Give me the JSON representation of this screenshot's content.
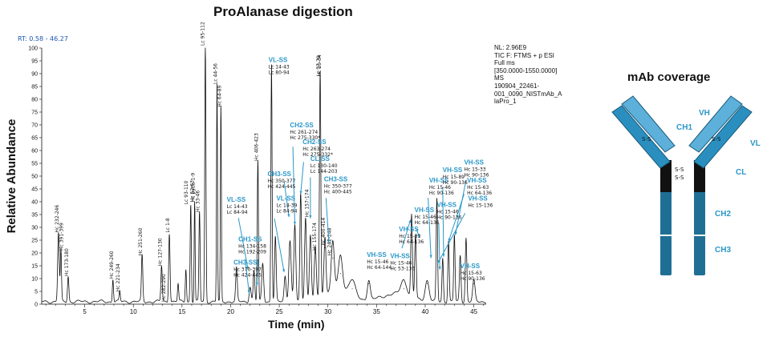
{
  "title": "ProAlanase digestion",
  "rt_range": "RT: 0.58 - 46.27",
  "instrument_info": [
    "NL: 2.96E9",
    "TIC F: FTMS + p ESI",
    "Full ms",
    "[350.0000-1550.0000]",
    "MS",
    "190904_22461-",
    "001_0090_NISTmAb_A",
    "laPro_1"
  ],
  "colors": {
    "trace": "#111111",
    "annotation": "#2a97c8",
    "heavy": "#1f6f95",
    "heavy_light": "#2a8fbf",
    "light": "#5cb0da",
    "hinge": "#111111"
  },
  "antibody": {
    "title": "mAb coverage",
    "labels": {
      "vh": "VH",
      "ch1": "CH1",
      "vl": "VL",
      "cl": "CL",
      "ch2": "CH2",
      "ch3": "CH3"
    },
    "disulfide": "S-S"
  },
  "chart_data": {
    "type": "line",
    "xlabel": "Time (min)",
    "ylabel": "Relative Abundance",
    "xlim": [
      0.58,
      46.27
    ],
    "ylim": [
      0,
      100
    ],
    "xticks": [
      5,
      10,
      15,
      20,
      25,
      30,
      35,
      40,
      45
    ],
    "yticks": [
      0,
      5,
      10,
      15,
      20,
      25,
      30,
      35,
      40,
      45,
      50,
      55,
      60,
      65,
      70,
      75,
      80,
      85,
      90,
      95,
      100
    ],
    "baseline": 1.0,
    "peaks": [
      [
        2.3,
        27,
        0.08
      ],
      [
        2.55,
        20,
        0.06
      ],
      [
        3.3,
        10,
        0.07
      ],
      [
        7.9,
        9,
        0.06
      ],
      [
        8.6,
        4,
        0.06
      ],
      [
        10.9,
        18,
        0.07
      ],
      [
        12.9,
        14,
        0.07
      ],
      [
        13.7,
        27,
        0.07
      ],
      [
        14.6,
        7,
        0.06
      ],
      [
        15.4,
        13,
        0.06
      ],
      [
        15.9,
        38,
        0.06
      ],
      [
        16.3,
        39,
        0.05
      ],
      [
        16.8,
        35,
        0.06
      ],
      [
        17.4,
        100,
        0.06
      ],
      [
        18.6,
        85,
        0.05
      ],
      [
        19.0,
        76,
        0.05
      ],
      [
        20.6,
        13,
        0.08
      ],
      [
        22.0,
        6,
        0.1
      ],
      [
        22.4,
        12,
        0.08
      ],
      [
        22.8,
        55,
        0.06
      ],
      [
        23.3,
        15,
        0.1
      ],
      [
        24.2,
        93,
        0.06
      ],
      [
        24.6,
        25,
        0.08
      ],
      [
        25.6,
        10,
        0.1
      ],
      [
        26.1,
        24,
        0.12
      ],
      [
        26.6,
        30,
        0.1
      ],
      [
        27.2,
        42,
        0.08
      ],
      [
        27.7,
        33,
        0.1
      ],
      [
        28.2,
        26,
        0.1
      ],
      [
        28.7,
        20,
        0.1
      ],
      [
        29.2,
        88,
        0.07
      ],
      [
        29.7,
        22,
        0.1
      ],
      [
        30.5,
        18,
        0.15
      ],
      [
        31.3,
        12,
        0.2
      ],
      [
        32.5,
        6,
        0.3
      ],
      [
        34.2,
        8,
        0.15
      ],
      [
        37.8,
        6,
        0.3
      ],
      [
        38.6,
        32,
        0.08
      ],
      [
        39.0,
        25,
        0.08
      ],
      [
        40.2,
        8,
        0.2
      ],
      [
        41.2,
        40,
        0.07
      ],
      [
        41.8,
        17,
        0.07
      ],
      [
        42.4,
        24,
        0.07
      ],
      [
        43.0,
        26,
        0.07
      ],
      [
        43.6,
        18,
        0.08
      ],
      [
        44.2,
        25,
        0.08
      ],
      [
        45.0,
        8,
        0.12
      ],
      [
        31.0,
        6,
        1.2
      ],
      [
        37.0,
        3,
        1.5
      ]
    ],
    "black_labels": [
      {
        "x": 2.3,
        "lines": [
          "Hc 232-246"
        ]
      },
      {
        "x": 2.75,
        "lines": [
          "Hc 391-399"
        ]
      },
      {
        "x": 3.3,
        "lines": [
          "Hc 173-180"
        ]
      },
      {
        "x": 7.9,
        "lines": [
          "Hc 249-260"
        ]
      },
      {
        "x": 8.6,
        "lines": [
          "Hc 221-234"
        ]
      },
      {
        "x": 10.9,
        "lines": [
          "Hc 251-260"
        ]
      },
      {
        "x": 12.9,
        "lines": [
          "Hc 127-130"
        ]
      },
      {
        "x": 13.3,
        "lines": [
          "Hc 282-290"
        ]
      },
      {
        "x": 13.7,
        "lines": [
          "Lc 1-8"
        ]
      },
      {
        "x": 15.6,
        "lines": [
          "Lc 93-110"
        ]
      },
      {
        "x": 16.2,
        "lines": [
          "Hc 52-63"
        ]
      },
      {
        "x": 16.3,
        "lines": [
          "Hc pyEu 1-9"
        ]
      },
      {
        "x": 16.8,
        "lines": [
          "Hc 33-46"
        ]
      },
      {
        "x": 17.3,
        "lines": [
          "Lc 95-112"
        ]
      },
      {
        "x": 18.6,
        "lines": [
          "Lc 44-56"
        ]
      },
      {
        "x": 19.0,
        "lines": [
          "Hc 64-89"
        ]
      },
      {
        "x": 22.8,
        "lines": [
          "Hc 406-423"
        ]
      },
      {
        "x": 28.0,
        "lines": [
          "Hc 157-174"
        ]
      },
      {
        "x": 28.8,
        "lines": [
          "Hc 155-174"
        ]
      },
      {
        "x": 29.2,
        "lines": [
          "Lc 57-79"
        ]
      },
      {
        "x": 29.3,
        "lines": [
          "Hc 25-34"
        ]
      },
      {
        "x": 29.7,
        "lines": [
          "Hc 400-414"
        ]
      },
      {
        "x": 30.3,
        "lines": [
          "Hc 242-248"
        ]
      }
    ],
    "ss_labels": [
      {
        "x": 23.9,
        "y": 94.5,
        "title": "VL-SS",
        "lines": [
          "Lc 14-43",
          "Lc 80-94"
        ]
      },
      {
        "x": 19.6,
        "y": 40,
        "title": "VL-SS",
        "lines": [
          "Lc 14-43",
          "Lc 84-94"
        ]
      },
      {
        "x": 20.8,
        "y": 24.5,
        "title": "CH1-SS",
        "lines": [
          "Hc 134-158",
          "Hc 192-209"
        ]
      },
      {
        "x": 20.3,
        "y": 15.5,
        "title": "CH3-SS",
        "lines": [
          "Hc 370-397",
          "Hc 424-445"
        ]
      },
      {
        "x": 24.7,
        "y": 40.5,
        "title": "VL-SS",
        "lines": [
          "Lc 14-39",
          "Lc 84-94"
        ]
      },
      {
        "x": 23.8,
        "y": 50,
        "title": "CH3-SS",
        "lines": [
          "Hc 350-377",
          "Hc 424-445"
        ]
      },
      {
        "x": 26.1,
        "y": 69,
        "title": "CH2-SS",
        "lines": [
          "Hc 261-274",
          "Hc 275-330*"
        ]
      },
      {
        "x": 27.4,
        "y": 62.5,
        "title": "CH2-SS",
        "lines": [
          "Hc 263-274",
          "Hc 275-332*"
        ]
      },
      {
        "x": 28.2,
        "y": 56,
        "title": "CL-SS",
        "lines": [
          "Lc 130-140",
          "Lc 144-203"
        ]
      },
      {
        "x": 29.6,
        "y": 48,
        "title": "CH3-SS",
        "lines": [
          "Hc 350-377",
          "Hc 400-445"
        ]
      },
      {
        "x": 34.0,
        "y": 18.5,
        "title": "VH-SS",
        "lines": [
          "Hc 15-46",
          "Hc 64-144"
        ]
      },
      {
        "x": 36.4,
        "y": 18,
        "title": "VH-SS",
        "lines": [
          "Hc 15-46",
          "Hc 53-136"
        ]
      },
      {
        "x": 37.3,
        "y": 28.5,
        "title": "VH-SS",
        "lines": [
          "Hc 15-33",
          "Hc 64-136"
        ]
      },
      {
        "x": 38.9,
        "y": 36,
        "title": "VH-SS",
        "lines": [
          "Hc 15-46",
          "Hc 64-136"
        ]
      },
      {
        "x": 40.4,
        "y": 47.5,
        "title": "VH-SS",
        "lines": [
          "Hc 15-46",
          "Hc 90-136"
        ]
      },
      {
        "x": 41.8,
        "y": 51.5,
        "title": "VH-SS",
        "lines": [
          "Hc 15-89",
          "Hc 90-136"
        ]
      },
      {
        "x": 41.2,
        "y": 38,
        "title": "VH-SS",
        "lines": [
          "Hc 15-46",
          "Hc 90-136"
        ]
      },
      {
        "x": 44.0,
        "y": 54.5,
        "title": "VH-SS",
        "lines": [
          "Hc 15-33",
          "Hc 90-136"
        ]
      },
      {
        "x": 44.3,
        "y": 47.5,
        "title": "VH-SS",
        "lines": [
          "Hc 15-63",
          "Hc 64-136"
        ]
      },
      {
        "x": 44.4,
        "y": 40.5,
        "title": "VH-SS",
        "lines": [
          "Hc 15-136"
        ]
      },
      {
        "x": 43.6,
        "y": 14,
        "title": "VH-SS",
        "lines": [
          "Hc 15-63",
          "Hc 90-136"
        ]
      }
    ],
    "arrows": [
      [
        20.8,
        33.7,
        21.8,
        13.5
      ],
      [
        21.5,
        17.5,
        21.9,
        4.2
      ],
      [
        22.8,
        17.5,
        22.7,
        7.2
      ],
      [
        25.5,
        48.0,
        26.0,
        34.0
      ],
      [
        24.5,
        33.5,
        25.5,
        12.5
      ],
      [
        26.4,
        61.5,
        26.6,
        31.0
      ],
      [
        27.5,
        55.5,
        27.2,
        43.0
      ],
      [
        28.2,
        49.5,
        28.2,
        33.5
      ],
      [
        29.8,
        41.5,
        30.1,
        24.0
      ],
      [
        37.6,
        21.8,
        38.5,
        33.0
      ],
      [
        39.1,
        29.5,
        39.4,
        26.0
      ],
      [
        40.3,
        41.5,
        40.6,
        18.0
      ],
      [
        41.8,
        45.5,
        41.9,
        18.5
      ],
      [
        41.4,
        31.5,
        41.5,
        13.5
      ],
      [
        44.2,
        48.5,
        43.1,
        27.0
      ],
      [
        44.0,
        43.0,
        42.4,
        24.5
      ],
      [
        44.1,
        35.5,
        41.3,
        16.0
      ]
    ]
  }
}
